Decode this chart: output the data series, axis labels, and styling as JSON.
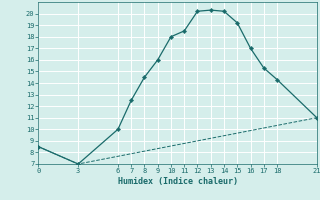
{
  "xlabel": "Humidex (Indice chaleur)",
  "ylabel": "",
  "background_color": "#d5eeeb",
  "grid_color": "#ffffff",
  "line_color": "#1a6b6b",
  "line1_x": [
    0,
    3,
    6,
    7,
    8,
    9,
    10,
    11,
    12,
    13,
    14,
    15,
    16,
    17,
    18,
    21
  ],
  "line1_y": [
    8.5,
    7.0,
    10.0,
    12.5,
    14.5,
    16.0,
    18.0,
    18.5,
    20.2,
    20.3,
    20.2,
    19.2,
    17.0,
    15.3,
    14.3,
    11.0
  ],
  "line2_x": [
    0,
    3,
    21
  ],
  "line2_y": [
    8.5,
    7.0,
    11.0
  ],
  "xlim": [
    0,
    21
  ],
  "ylim": [
    7,
    21
  ],
  "yticks": [
    7,
    8,
    9,
    10,
    11,
    12,
    13,
    14,
    15,
    16,
    17,
    18,
    19,
    20
  ],
  "xticks": [
    0,
    3,
    6,
    7,
    8,
    9,
    10,
    11,
    12,
    13,
    14,
    15,
    16,
    17,
    18,
    21
  ],
  "font_color": "#1a6b6b",
  "font_family": "monospace",
  "tick_fontsize": 5.0,
  "xlabel_fontsize": 6.0
}
